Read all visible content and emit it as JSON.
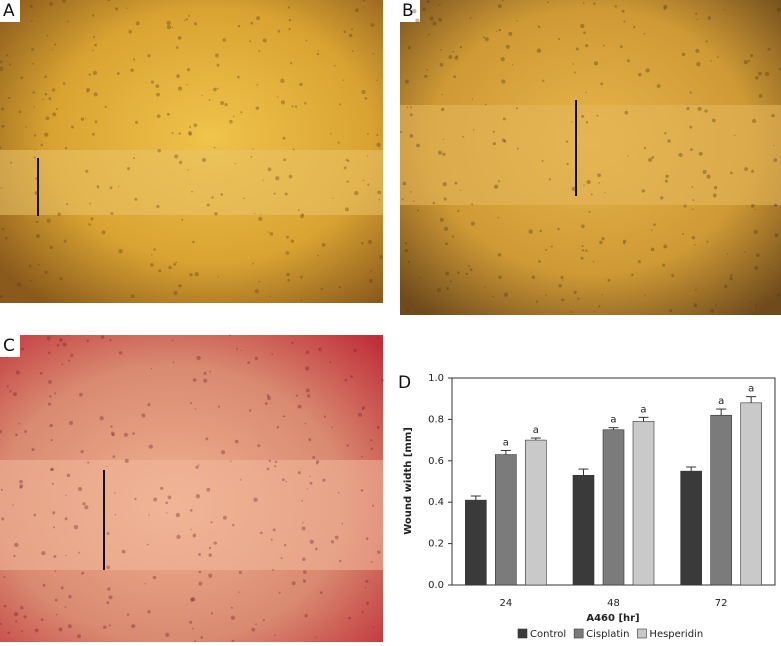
{
  "panels": [
    {
      "label": "A"
    },
    {
      "label": "B"
    },
    {
      "label": "C"
    }
  ],
  "chart_data": {
    "type": "bar",
    "panel_label": "D",
    "x_label": "A460 [hr]",
    "y_label": "Wound width [mm]",
    "categories": [
      "24",
      "48",
      "72"
    ],
    "ylim": [
      0,
      1
    ],
    "yticks": [
      {
        "value": 0,
        "label": "0.0"
      },
      0.2,
      0.4,
      0.6,
      0.8,
      {
        "value": 1,
        "label": "1.0"
      }
    ],
    "series": [
      {
        "name": "Control",
        "color": "#3a3a3a",
        "values": [
          0.41,
          0.53,
          0.55
        ],
        "errors": [
          0.02,
          0.03,
          0.02
        ]
      },
      {
        "name": "Cisplatin",
        "color": "#7b7b7b",
        "values": [
          0.63,
          0.75,
          0.82
        ],
        "errors": [
          0.02,
          0.01,
          0.03
        ],
        "annotations": [
          "a",
          "a",
          "a"
        ]
      },
      {
        "name": "Hesperidin",
        "color": "#c9c9c9",
        "values": [
          0.7,
          0.79,
          0.88
        ],
        "errors": [
          0.01,
          0.02,
          0.03
        ],
        "annotations": [
          "a",
          "a",
          "a"
        ]
      }
    ]
  }
}
